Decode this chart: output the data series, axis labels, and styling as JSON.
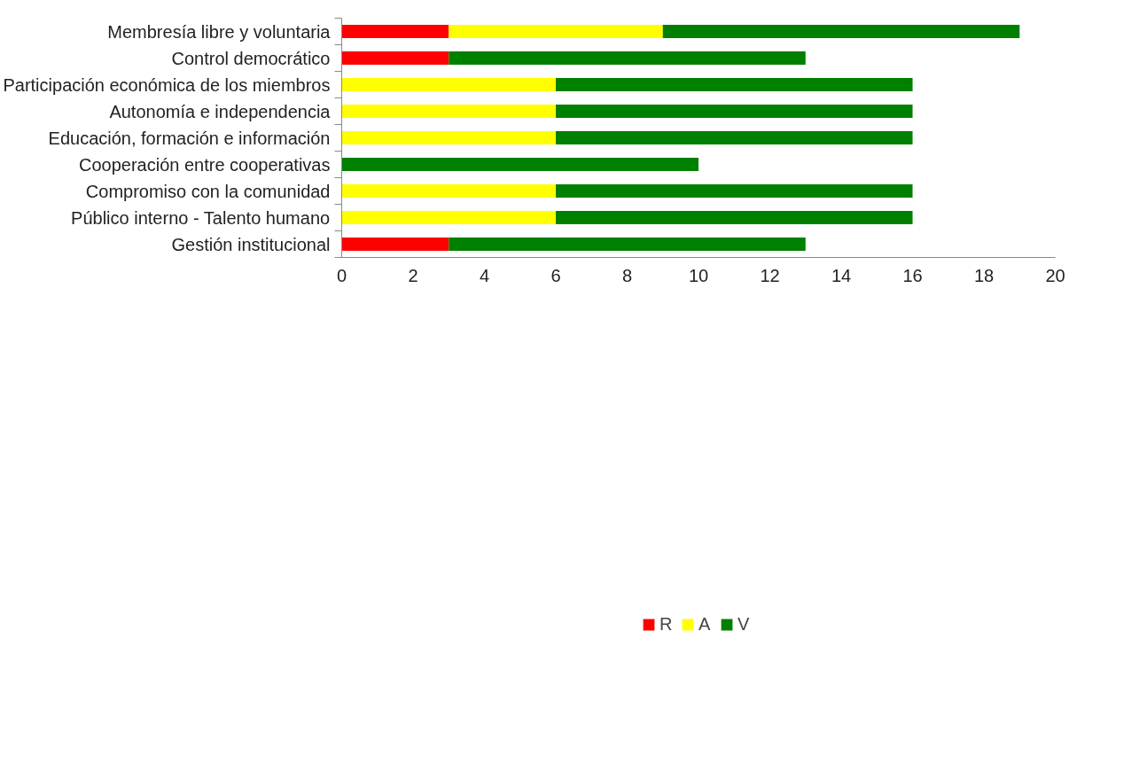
{
  "chart_data": {
    "type": "bar",
    "orientation": "horizontal",
    "stacked": true,
    "categories": [
      "Membresía libre y voluntaria",
      "Control democrático",
      "Participación económica de los miembros",
      "Autonomía e independencia",
      "Educación, formación e información",
      "Cooperación entre cooperativas",
      "Compromiso con la comunidad",
      "Público interno - Talento humano",
      "Gestión institucional"
    ],
    "series": [
      {
        "name": "R",
        "color": "#ff0000",
        "values": [
          3,
          3,
          0,
          0,
          0,
          0,
          0,
          0,
          3
        ]
      },
      {
        "name": "A",
        "color": "#ffff00",
        "values": [
          6,
          0,
          6,
          6,
          6,
          0,
          6,
          6,
          0
        ]
      },
      {
        "name": "V",
        "color": "#008000",
        "values": [
          10,
          10,
          10,
          10,
          10,
          10,
          10,
          10,
          10
        ]
      }
    ],
    "xlim": [
      0,
      20
    ],
    "xticks": [
      0,
      2,
      4,
      6,
      8,
      10,
      12,
      14,
      16,
      18,
      20
    ],
    "grid": false,
    "legend": "bottom"
  }
}
